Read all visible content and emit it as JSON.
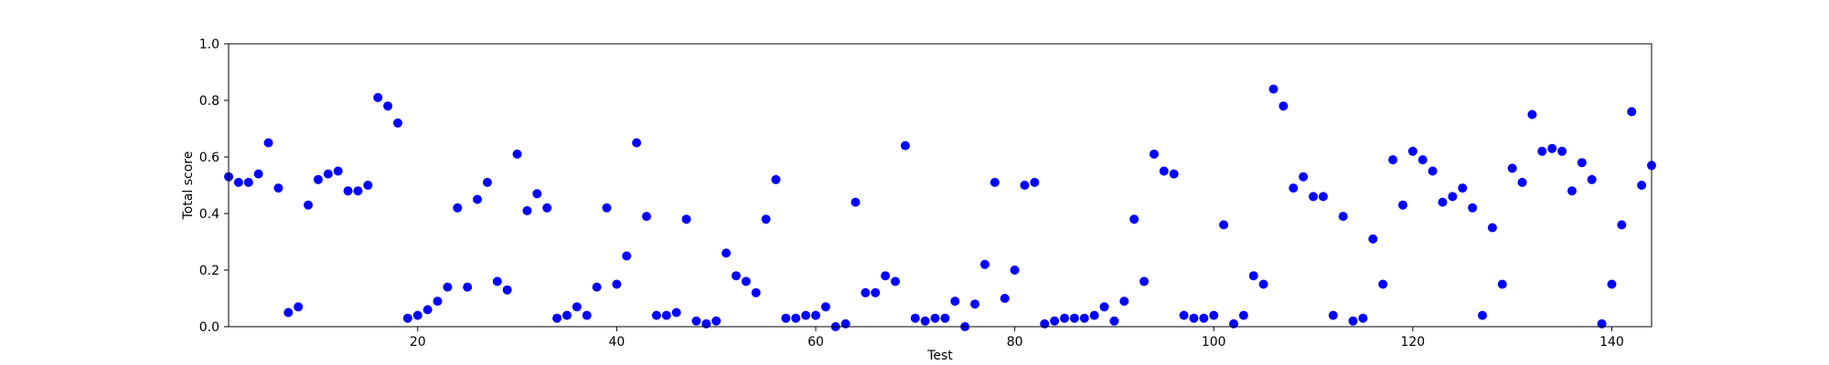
{
  "chart_data": {
    "type": "scatter",
    "title": "",
    "xlabel": "Test",
    "ylabel": "Total score",
    "xlim": [
      1,
      144
    ],
    "ylim": [
      0.0,
      1.0
    ],
    "xticks": [
      20,
      40,
      60,
      80,
      100,
      120,
      140
    ],
    "xtick_labels": [
      "20",
      "40",
      "60",
      "80",
      "100",
      "120",
      "140"
    ],
    "yticks": [
      0.0,
      0.2,
      0.4,
      0.6,
      0.8,
      1.0
    ],
    "ytick_labels": [
      "0.0",
      "0.2",
      "0.4",
      "0.6",
      "0.8",
      "1.0"
    ],
    "grid": false,
    "series": [
      {
        "color": "#0000ff",
        "marker": "circle",
        "x": [
          1,
          2,
          3,
          4,
          5,
          6,
          7,
          8,
          9,
          10,
          11,
          12,
          13,
          14,
          15,
          16,
          17,
          18,
          19,
          20,
          21,
          22,
          23,
          24,
          25,
          26,
          27,
          28,
          29,
          30,
          31,
          32,
          33,
          34,
          35,
          36,
          37,
          38,
          39,
          40,
          41,
          42,
          43,
          44,
          45,
          46,
          47,
          48,
          49,
          50,
          51,
          52,
          53,
          54,
          55,
          56,
          57,
          58,
          59,
          60,
          61,
          62,
          63,
          64,
          65,
          66,
          67,
          68,
          69,
          70,
          71,
          72,
          73,
          74,
          75,
          76,
          77,
          78,
          79,
          80,
          81,
          82,
          83,
          84,
          85,
          86,
          87,
          88,
          89,
          90,
          91,
          92,
          93,
          94,
          95,
          96,
          97,
          98,
          99,
          100,
          101,
          102,
          103,
          104,
          105,
          106,
          107,
          108,
          109,
          110,
          111,
          112,
          113,
          114,
          115,
          116,
          117,
          118,
          119,
          120,
          121,
          122,
          123,
          124,
          125,
          126,
          127,
          128,
          129,
          130,
          131,
          132,
          133,
          134,
          135,
          136,
          137,
          138,
          139,
          140,
          141,
          142,
          143,
          144
        ],
        "y": [
          0.53,
          0.51,
          0.51,
          0.54,
          0.65,
          0.49,
          0.05,
          0.07,
          0.43,
          0.52,
          0.54,
          0.55,
          0.48,
          0.48,
          0.5,
          0.81,
          0.78,
          0.72,
          0.03,
          0.04,
          0.06,
          0.09,
          0.14,
          0.42,
          0.14,
          0.45,
          0.51,
          0.16,
          0.13,
          0.61,
          0.41,
          0.47,
          0.42,
          0.03,
          0.04,
          0.07,
          0.04,
          0.14,
          0.42,
          0.15,
          0.25,
          0.65,
          0.39,
          0.04,
          0.04,
          0.05,
          0.38,
          0.02,
          0.01,
          0.02,
          0.26,
          0.18,
          0.16,
          0.12,
          0.38,
          0.52,
          0.03,
          0.03,
          0.04,
          0.04,
          0.07,
          0.0,
          0.01,
          0.44,
          0.12,
          0.12,
          0.18,
          0.16,
          0.64,
          0.03,
          0.02,
          0.03,
          0.03,
          0.09,
          0.0,
          0.08,
          0.22,
          0.51,
          0.1,
          0.2,
          0.5,
          0.51,
          0.01,
          0.02,
          0.03,
          0.03,
          0.03,
          0.04,
          0.07,
          0.02,
          0.09,
          0.38,
          0.16,
          0.61,
          0.55,
          0.54,
          0.04,
          0.03,
          0.03,
          0.04,
          0.36,
          0.01,
          0.04,
          0.18,
          0.15,
          0.84,
          0.78,
          0.49,
          0.53,
          0.46,
          0.46,
          0.04,
          0.39,
          0.02,
          0.03,
          0.31,
          0.15,
          0.59,
          0.43,
          0.62,
          0.59,
          0.55,
          0.44,
          0.46,
          0.49,
          0.42,
          0.04,
          0.35,
          0.15,
          0.56,
          0.51,
          0.75,
          0.62,
          0.63,
          0.62,
          0.48,
          0.58,
          0.52,
          0.01,
          0.15,
          0.36,
          0.76,
          0.5,
          0.57
        ]
      }
    ]
  }
}
